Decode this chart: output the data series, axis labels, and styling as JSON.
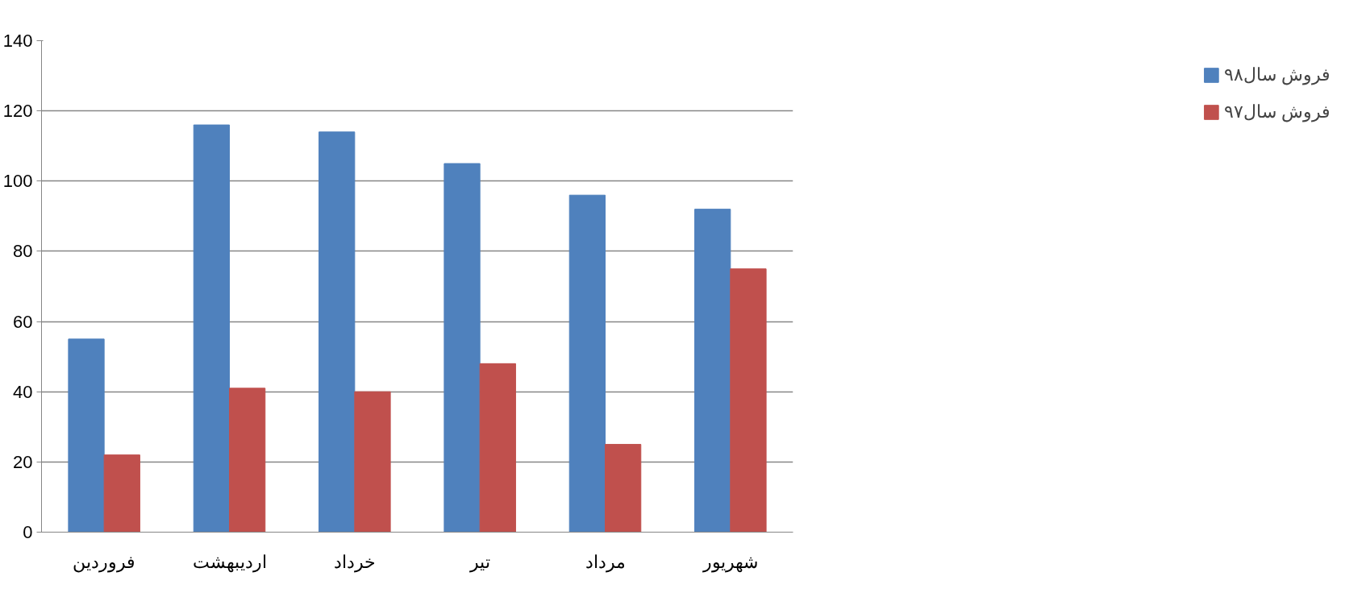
{
  "chart_data": {
    "type": "bar",
    "categories": [
      "فروردین",
      "اردیبهشت",
      "خرداد",
      "تیر",
      "مرداد",
      "شهریور"
    ],
    "series": [
      {
        "name": "فروش سال۹۸",
        "color": "#4f81bd",
        "values": [
          55,
          116,
          114,
          105,
          96,
          92
        ]
      },
      {
        "name": "فروش سال۹۷",
        "color": "#c0504d",
        "values": [
          22,
          41,
          40,
          48,
          25,
          75
        ]
      }
    ],
    "ylim": [
      0,
      140
    ],
    "yticks": [
      0,
      20,
      40,
      60,
      80,
      100,
      120,
      140
    ],
    "grid": "y",
    "legend": "right"
  }
}
